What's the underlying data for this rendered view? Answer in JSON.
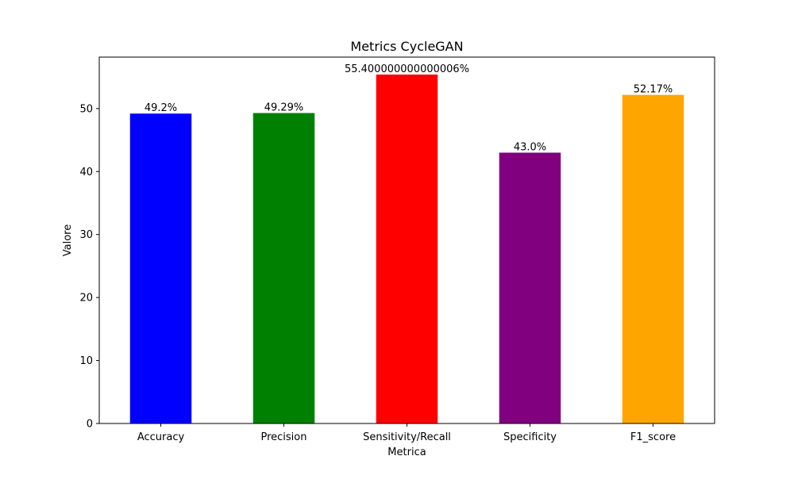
{
  "chart_data": {
    "type": "bar",
    "title": "Metrics CycleGAN",
    "xlabel": "Metrica",
    "ylabel": "Valore",
    "categories": [
      "Accuracy",
      "Precision",
      "Sensitivity/Recall",
      "Specificity",
      "F1_score"
    ],
    "values": [
      49.2,
      49.29,
      55.400000000000006,
      43.0,
      52.17
    ],
    "data_labels": [
      "49.2%",
      "49.29%",
      "55.400000000000006%",
      "43.0%",
      "52.17%"
    ],
    "colors": [
      "#0000ff",
      "#008000",
      "#ff0000",
      "#800080",
      "#ffa500"
    ],
    "ylim": [
      0,
      58.17
    ],
    "yticks": [
      0,
      10,
      20,
      30,
      40,
      50
    ],
    "grid": false,
    "legend": "none"
  }
}
